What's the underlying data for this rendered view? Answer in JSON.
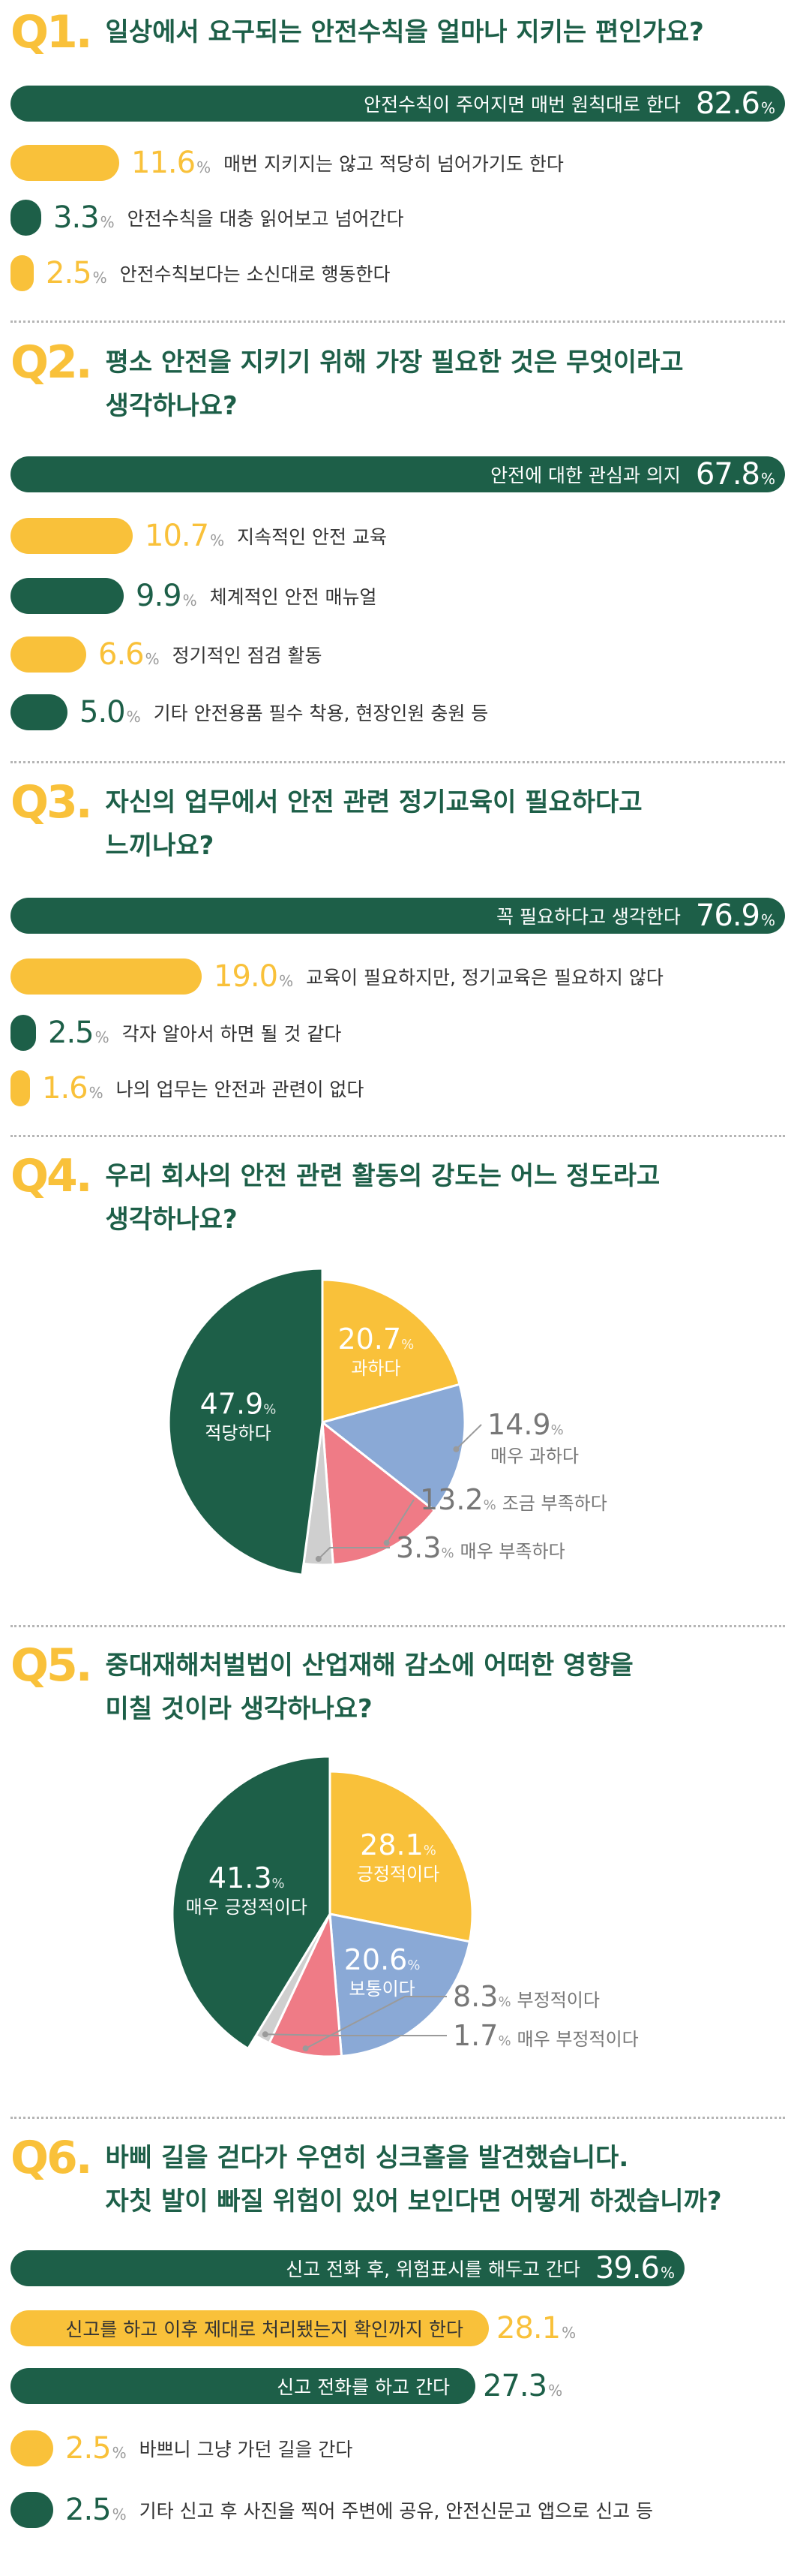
{
  "q1": {
    "num": "Q1.",
    "title": "일상에서 요구되는 안전수칙을 얼마나 지키는 편인가요?"
  },
  "q2": {
    "num": "Q2.",
    "title_line1": "평소 안전을 지키기 위해 가장 필요한 것은 무엇이라고",
    "title_line2": "생각하나요?"
  },
  "q3": {
    "num": "Q3.",
    "title_line1": "자신의 업무에서 안전 관련 정기교육이 필요하다고",
    "title_line2": "느끼나요?"
  },
  "q4": {
    "num": "Q4.",
    "title_line1": "우리 회사의 안전 관련 활동의 강도는 어느 정도라고",
    "title_line2": "생각하나요?"
  },
  "q5": {
    "num": "Q5.",
    "title_line1": "중대재해처벌법이 산업재해 감소에 어떠한 영향을",
    "title_line2": "미칠 것이라 생각하나요?"
  },
  "q6": {
    "num": "Q6.",
    "title_line1": "바삐 길을 걷다가 우연히 싱크홀을 발견했습니다.",
    "title_line2": "자칫 발이 빠질 위험이 있어 보인다면 어떻게 하겠습니까?"
  },
  "unit": "%",
  "colors": {
    "green": "#1d5f48",
    "yellow": "#f9c13a",
    "blue": "#8aa9d6",
    "pink": "#ef7b86",
    "gray": "#cfcfcf"
  },
  "chart_data": [
    {
      "type": "bar",
      "question": "Q1",
      "categories": [
        "안전수칙이 주어지면 매번 원칙대로 한다",
        "매번 지키지는 않고 적당히 넘어가기도 한다",
        "안전수칙을 대충 읽어보고 넘어간다",
        "안전수칙보다는 소신대로 행동한다"
      ],
      "values": [
        82.6,
        11.6,
        3.3,
        2.5
      ],
      "value_labels": [
        "82.6",
        "11.6",
        "3.3",
        "2.5"
      ],
      "colors": [
        "green",
        "yellow",
        "green",
        "yellow"
      ]
    },
    {
      "type": "bar",
      "question": "Q2",
      "categories": [
        "안전에 대한 관심과 의지",
        "지속적인 안전 교육",
        "체계적인 안전 매뉴얼",
        "정기적인 점검 활동",
        "기타  안전용품 필수 착용, 현장인원 충원 등"
      ],
      "values": [
        67.8,
        10.7,
        9.9,
        6.6,
        5.0
      ],
      "value_labels": [
        "67.8",
        "10.7",
        "9.9",
        "6.6",
        "5.0"
      ],
      "colors": [
        "green",
        "yellow",
        "green",
        "yellow",
        "green"
      ]
    },
    {
      "type": "bar",
      "question": "Q3",
      "categories": [
        "꼭 필요하다고 생각한다",
        "교육이 필요하지만, 정기교육은 필요하지 않다",
        "각자 알아서 하면 될 것 같다",
        "나의 업무는 안전과 관련이 없다"
      ],
      "values": [
        76.9,
        19.0,
        2.5,
        1.6
      ],
      "value_labels": [
        "76.9",
        "19.0",
        "2.5",
        "1.6"
      ],
      "colors": [
        "green",
        "yellow",
        "green",
        "yellow"
      ]
    },
    {
      "type": "pie",
      "question": "Q4",
      "categories": [
        "과하다",
        "매우 과하다",
        "조금 부족하다",
        "매우 부족하다",
        "적당하다"
      ],
      "values": [
        20.7,
        14.9,
        13.2,
        3.3,
        47.9
      ],
      "value_labels": [
        "20.7",
        "14.9",
        "13.2",
        "3.3",
        "47.9"
      ],
      "colors": [
        "yellow",
        "blue",
        "pink",
        "gray",
        "green"
      ]
    },
    {
      "type": "pie",
      "question": "Q5",
      "categories": [
        "긍정적이다",
        "보통이다",
        "부정적이다",
        "매우 부정적이다",
        "매우 긍정적이다"
      ],
      "values": [
        28.1,
        20.6,
        8.3,
        1.7,
        41.3
      ],
      "value_labels": [
        "28.1",
        "20.6",
        "8.3",
        "1.7",
        "41.3"
      ],
      "colors": [
        "yellow",
        "blue",
        "pink",
        "gray",
        "green"
      ]
    },
    {
      "type": "bar",
      "question": "Q6",
      "categories": [
        "신고 전화 후, 위험표시를 해두고 간다",
        "신고를 하고 이후 제대로 처리됐는지 확인까지 한다",
        "신고 전화를 하고 간다",
        "바쁘니 그냥 가던 길을 간다",
        "기타  신고 후 사진을 찍어 주변에 공유, 안전신문고 앱으로 신고 등"
      ],
      "values": [
        39.6,
        28.1,
        27.3,
        2.5,
        2.5
      ],
      "value_labels": [
        "39.6",
        "28.1",
        "27.3",
        "2.5",
        "2.5"
      ],
      "colors": [
        "green",
        "yellow",
        "green",
        "yellow",
        "green"
      ]
    }
  ]
}
